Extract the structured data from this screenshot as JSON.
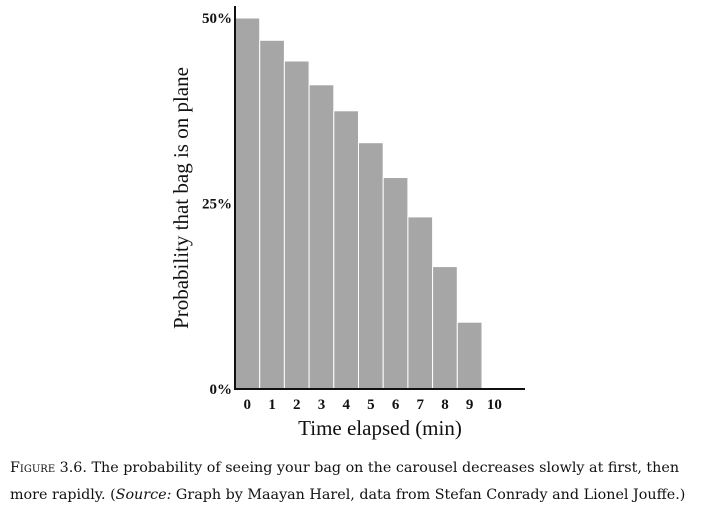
{
  "chart_data": {
    "type": "bar",
    "title": "",
    "xlabel": "Time elapsed (min)",
    "ylabel": "Probability that bag is on plane",
    "categories": [
      "0",
      "1",
      "2",
      "3",
      "4",
      "5",
      "6",
      "7",
      "8",
      "9",
      "10"
    ],
    "values": [
      50,
      47,
      44.2,
      41,
      37.5,
      33.2,
      28.5,
      23.2,
      16.5,
      9,
      0
    ],
    "value_unit": "%",
    "ylim": [
      0,
      50
    ],
    "y_ticks": [
      {
        "value": 0,
        "label": "0%"
      },
      {
        "value": 25,
        "label": "25%"
      },
      {
        "value": 50,
        "label": "50%"
      }
    ],
    "grid": false,
    "bar_color": "#a6a6a6"
  },
  "caption": {
    "figure_label": "Figure 3.6.",
    "text_before_source": " The probability of seeing your bag on the carousel decreases slowly at first, then more rapidly. (",
    "source_label": "Source:",
    "text_after_source": " Graph by Maayan Harel, data from Stefan Conrady and Lionel Jouffe.)"
  }
}
